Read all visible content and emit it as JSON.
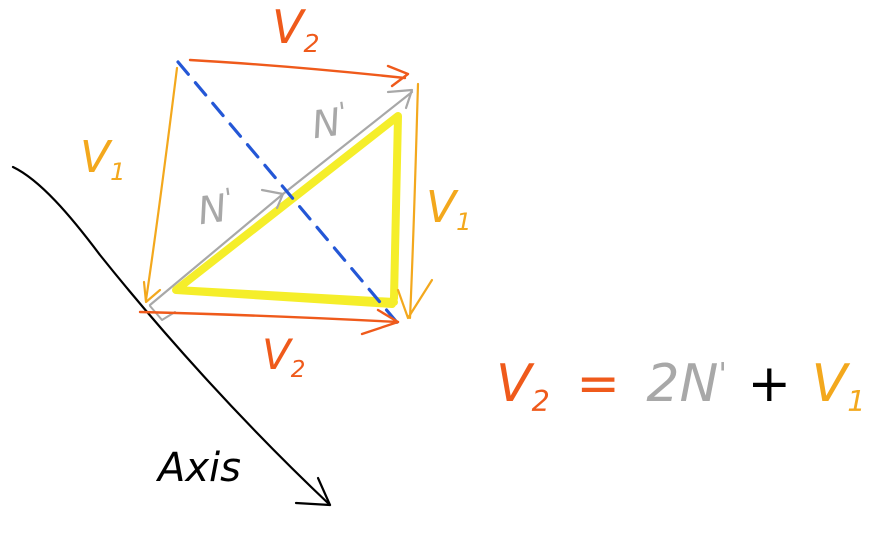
{
  "colors": {
    "background": "#ffffff",
    "v1": "#f3a81d",
    "v2": "#ef5a1b",
    "n": "#a8a8a8",
    "highlight": "#f5ee2a",
    "diagonal": "#2457d6",
    "axis": "#000000"
  },
  "labels": {
    "v2_top": {
      "main": "V",
      "sub": "2"
    },
    "v1_left": {
      "main": "V",
      "sub": "1"
    },
    "v1_right": {
      "main": "V",
      "sub": "1"
    },
    "v2_bottom": {
      "main": "V",
      "sub": "2"
    },
    "n_upper": {
      "main": "N",
      "sup": "'"
    },
    "n_lower": {
      "main": "N",
      "sup": "'"
    },
    "axis": "Axis"
  },
  "equation": {
    "lhs": "V",
    "lhs_sub": "2",
    "equals": "=",
    "coef": "2",
    "n": "N",
    "n_sup": "'",
    "plus": "+",
    "rhs": "V",
    "rhs_sub": "1"
  }
}
